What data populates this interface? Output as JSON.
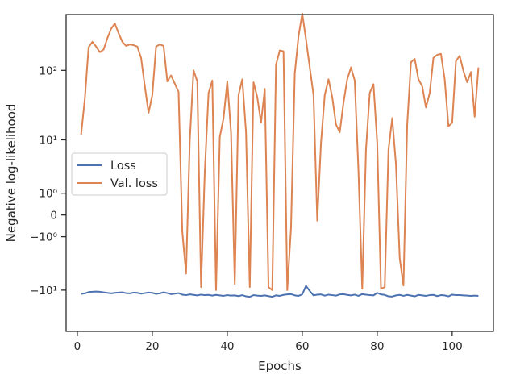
{
  "chart_data": {
    "type": "line",
    "title": "",
    "xlabel": "Epochs",
    "ylabel": "Negative log-likelihood",
    "y_scale": "symlog",
    "xlim": [
      -3,
      111
    ],
    "ylim": [
      -40,
      600
    ],
    "x_ticks": [
      0,
      20,
      40,
      60,
      80,
      100
    ],
    "x_tick_labels": [
      "0",
      "20",
      "40",
      "60",
      "80",
      "100"
    ],
    "y_ticks": [
      -10,
      -1,
      0,
      1,
      10,
      100
    ],
    "y_tick_labels": [
      "−10¹",
      "−10⁰",
      "0",
      "10⁰",
      "10¹",
      "10²"
    ],
    "grid": false,
    "legend_position": "center-left",
    "series": [
      {
        "name": "Loss",
        "color": "#4c72b0",
        "x": [
          1,
          2,
          3,
          4,
          5,
          6,
          7,
          8,
          9,
          10,
          11,
          12,
          13,
          14,
          15,
          16,
          17,
          18,
          19,
          20,
          21,
          22,
          23,
          24,
          25,
          26,
          27,
          28,
          29,
          30,
          31,
          32,
          33,
          34,
          35,
          36,
          37,
          38,
          39,
          40,
          41,
          42,
          43,
          44,
          45,
          46,
          47,
          48,
          49,
          50,
          51,
          52,
          53,
          54,
          55,
          56,
          57,
          58,
          59,
          60,
          61,
          62,
          63,
          64,
          65,
          66,
          67,
          68,
          69,
          70,
          71,
          72,
          73,
          74,
          75,
          76,
          77,
          78,
          79,
          80,
          81,
          82,
          83,
          84,
          85,
          86,
          87,
          88,
          89,
          90,
          91,
          92,
          93,
          94,
          95,
          96,
          97,
          98,
          99,
          100,
          101,
          102,
          103,
          104,
          105,
          106,
          107
        ],
        "values": [
          -11.4,
          -11.2,
          -10.7,
          -10.6,
          -10.5,
          -10.6,
          -10.8,
          -11.0,
          -11.2,
          -11.0,
          -10.9,
          -10.8,
          -11.1,
          -11.2,
          -10.9,
          -11.0,
          -11.3,
          -11.1,
          -10.9,
          -11.0,
          -11.4,
          -11.2,
          -10.8,
          -11.1,
          -11.5,
          -11.3,
          -11.1,
          -11.7,
          -11.9,
          -11.6,
          -11.8,
          -12.0,
          -11.7,
          -11.9,
          -11.8,
          -12.1,
          -11.8,
          -12.0,
          -12.2,
          -11.9,
          -12.1,
          -12.0,
          -12.3,
          -11.9,
          -12.4,
          -12.6,
          -11.9,
          -12.1,
          -12.2,
          -12.0,
          -12.3,
          -12.6,
          -12.0,
          -12.2,
          -11.8,
          -11.6,
          -11.5,
          -12.0,
          -12.2,
          -11.6,
          -8.6,
          -10.3,
          -12.0,
          -11.7,
          -11.6,
          -12.1,
          -11.7,
          -11.9,
          -12.1,
          -11.6,
          -11.5,
          -11.8,
          -12.0,
          -11.7,
          -12.2,
          -11.5,
          -11.7,
          -11.9,
          -12.0,
          -11.0,
          -11.6,
          -11.8,
          -12.4,
          -12.5,
          -12.0,
          -11.8,
          -12.2,
          -11.8,
          -12.1,
          -12.4,
          -11.8,
          -12.0,
          -12.2,
          -11.9,
          -11.8,
          -12.3,
          -11.9,
          -12.0,
          -12.4,
          -11.7,
          -11.9,
          -11.9,
          -12.0,
          -12.1,
          -12.2,
          -12.1,
          -12.2
        ]
      },
      {
        "name": "Val. loss",
        "color": "#dd8452",
        "x": [
          1,
          2,
          3,
          4,
          5,
          6,
          7,
          8,
          9,
          10,
          11,
          12,
          13,
          14,
          15,
          16,
          17,
          18,
          19,
          20,
          21,
          22,
          23,
          24,
          25,
          26,
          27,
          28,
          29,
          30,
          31,
          32,
          33,
          34,
          35,
          36,
          37,
          38,
          39,
          40,
          41,
          42,
          43,
          44,
          45,
          46,
          47,
          48,
          49,
          50,
          51,
          52,
          53,
          54,
          55,
          56,
          57,
          58,
          59,
          60,
          61,
          62,
          63,
          64,
          65,
          66,
          67,
          68,
          69,
          70,
          71,
          72,
          73,
          74,
          75,
          76,
          77,
          78,
          79,
          80,
          81,
          82,
          83,
          84,
          85,
          86,
          87,
          88,
          89,
          90,
          91,
          92,
          93,
          94,
          95,
          96,
          97,
          98,
          99,
          100,
          101,
          102,
          103,
          104,
          105,
          106,
          107
        ],
        "values": [
          12,
          40,
          210,
          250,
          215,
          180,
          195,
          280,
          380,
          450,
          330,
          250,
          220,
          230,
          225,
          215,
          150,
          60,
          25,
          45,
          215,
          230,
          220,
          70,
          85,
          65,
          50,
          -0.7,
          -5.5,
          10,
          100,
          70,
          -9,
          3,
          48,
          72,
          -10,
          11,
          21,
          70,
          13,
          -8,
          45,
          75,
          13,
          -9,
          68,
          42,
          18,
          55,
          -9,
          -10,
          120,
          190,
          185,
          -10,
          -0.5,
          90,
          300,
          620,
          270,
          110,
          45,
          -0.2,
          9,
          45,
          75,
          42,
          17,
          13,
          35,
          75,
          110,
          72,
          3,
          -9.5,
          7,
          48,
          64,
          9,
          -9.5,
          -9,
          7,
          21,
          4,
          -3,
          -8.5,
          17,
          130,
          145,
          75,
          60,
          30,
          48,
          150,
          165,
          170,
          75,
          16,
          18,
          135,
          160,
          98,
          68,
          95,
          22,
          110
        ]
      }
    ]
  }
}
